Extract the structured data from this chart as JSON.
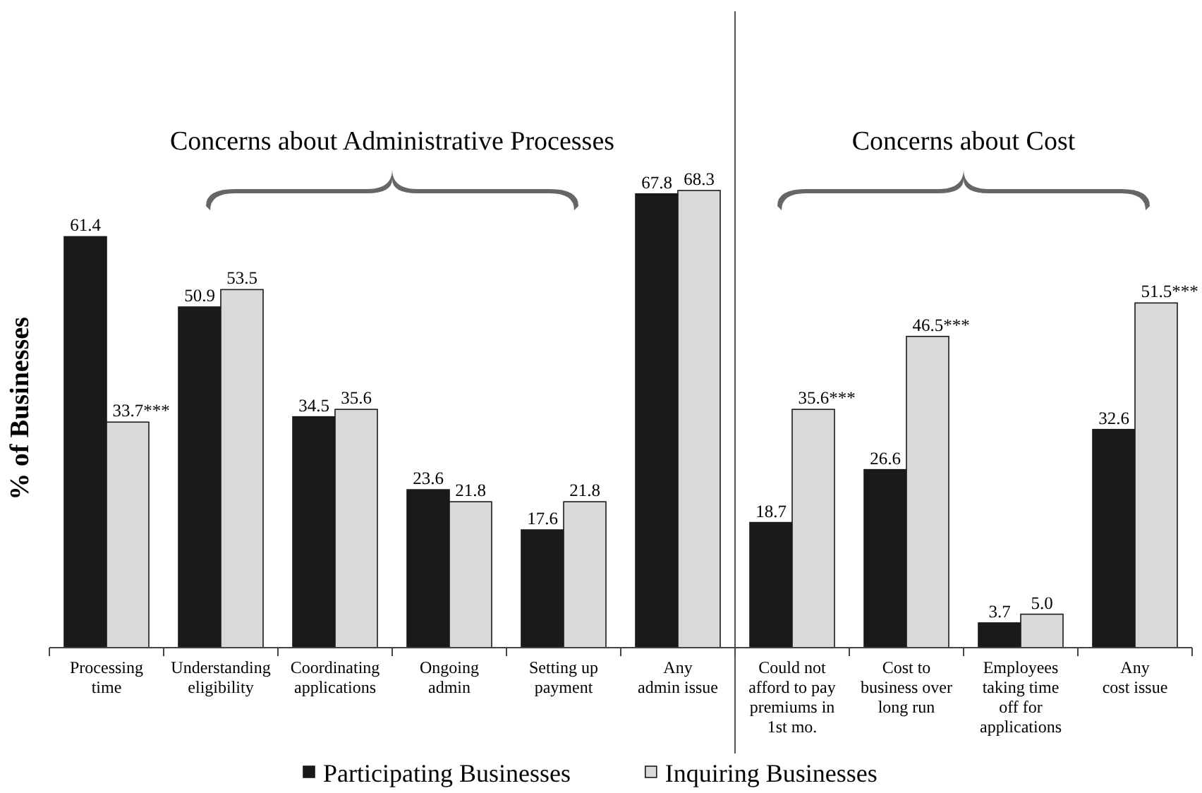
{
  "chart_data": {
    "type": "bar",
    "ylabel": "% of Businesses",
    "categories": [
      "Processing\ntime",
      "Understanding\neligibility",
      "Coordinating\napplications",
      "Ongoing\nadmin",
      "Setting up\npayment",
      "Any\nadmin issue",
      "Could not\nafford to pay\npremiums in\n1st mo.",
      "Cost to\nbusiness over\nlong run",
      "Employees\ntaking time\noff for\napplications",
      "Any\ncost issue"
    ],
    "series": [
      {
        "name": "Participating Businesses",
        "color": "#1a1a1a",
        "values": [
          61.4,
          50.9,
          34.5,
          23.6,
          17.6,
          67.8,
          18.7,
          26.6,
          3.7,
          32.6
        ],
        "value_labels": [
          "61.4",
          "50.9",
          "34.5",
          "23.6",
          "17.6",
          "67.8",
          "18.7",
          "26.6",
          "3.7",
          "32.6"
        ]
      },
      {
        "name": "Inquiring Businesses",
        "color": "#d9d9d9",
        "values": [
          33.7,
          53.5,
          35.6,
          21.8,
          21.8,
          68.3,
          35.6,
          46.5,
          5.0,
          51.5
        ],
        "value_labels": [
          "33.7***",
          "53.5",
          "35.6",
          "21.8",
          "21.8",
          "68.3",
          "35.6***",
          "46.5***",
          "5.0",
          "51.5***"
        ]
      }
    ],
    "annotations": [
      "Concerns about Administrative Processes",
      "Concerns about Cost"
    ],
    "legend": "bottom",
    "marker": "square",
    "grid": false
  }
}
